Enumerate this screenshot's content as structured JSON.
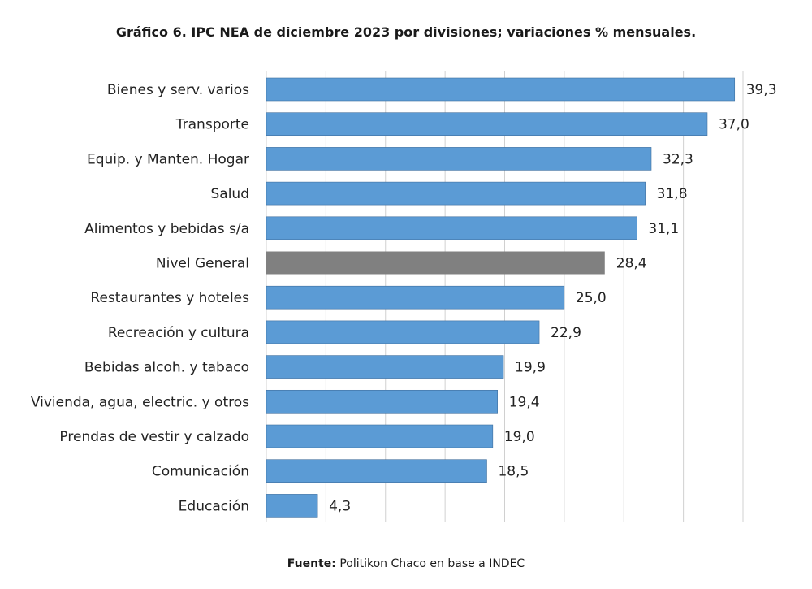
{
  "chart_data": {
    "type": "bar",
    "orientation": "horizontal",
    "title": "Gráfico 6. IPC NEA de diciembre 2023 por divisiones; variaciones % mensuales.",
    "categories": [
      "Bienes y serv. varios",
      "Transporte",
      "Equip. y Manten. Hogar",
      "Salud",
      "Alimentos y bebidas s/a",
      "Nivel General",
      "Restaurantes y hoteles",
      "Recreación y cultura",
      "Bebidas alcoh. y tabaco",
      "Vivienda, agua, electric. y otros",
      "Prendas de vestir y calzado",
      "Comunicación",
      "Educación"
    ],
    "values": [
      39.3,
      37.0,
      32.3,
      31.8,
      31.1,
      28.4,
      25.0,
      22.9,
      19.9,
      19.4,
      19.0,
      18.5,
      4.3
    ],
    "value_labels": [
      "39,3",
      "37,0",
      "32,3",
      "31,8",
      "31,1",
      "28,4",
      "25,0",
      "22,9",
      "19,9",
      "19,4",
      "19,0",
      "18,5",
      "4,3"
    ],
    "highlight_category": "Nivel General",
    "colors": {
      "bar": "#5B9BD5",
      "highlight": "#808080",
      "grid": "#d0d0d0"
    },
    "xlim": [
      0,
      40
    ],
    "grid": true,
    "xlabel": "",
    "ylabel": ""
  },
  "source": {
    "label": "Fuente:",
    "text": "Politikon Chaco en base a INDEC"
  }
}
